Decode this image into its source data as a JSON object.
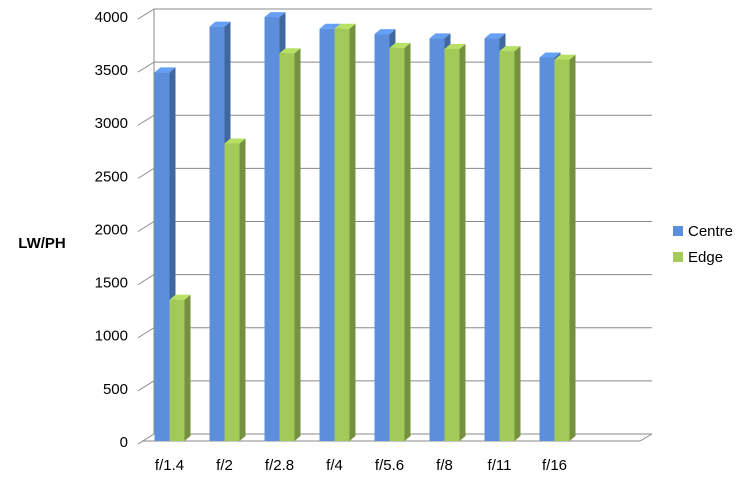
{
  "chart_data": {
    "type": "bar3d",
    "y_label": "LW/PH",
    "categories": [
      "f/1.4",
      "f/2",
      "f/2.8",
      "f/4",
      "f/5.6",
      "f/8",
      "f/11",
      "f/16"
    ],
    "series": [
      {
        "name": "Centre",
        "color": "#5b8fdc",
        "values": [
          3470,
          3900,
          3990,
          3880,
          3830,
          3790,
          3790,
          3610
        ]
      },
      {
        "name": "Edge",
        "color": "#a3c959",
        "values": [
          1330,
          2800,
          3650,
          3880,
          3700,
          3690,
          3670,
          3590
        ]
      }
    ],
    "ylim": [
      0,
      4000
    ],
    "yticks": [
      0,
      500,
      1000,
      1500,
      2000,
      2500,
      3000,
      3500,
      4000
    ],
    "grid": true,
    "legend": "right"
  }
}
